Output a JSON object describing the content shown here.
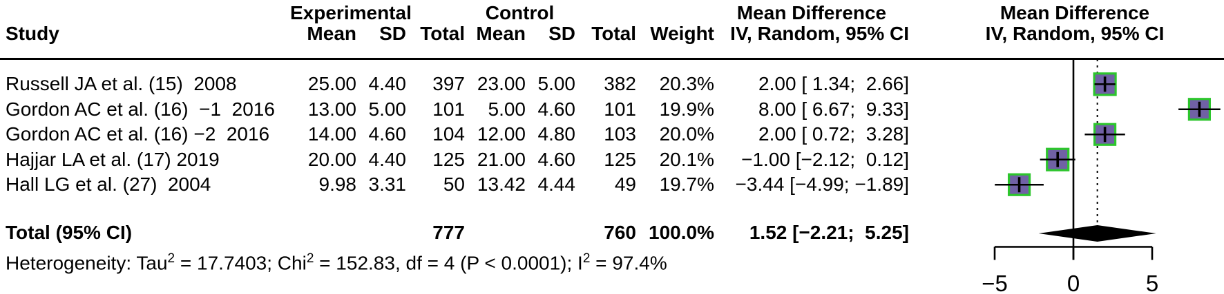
{
  "headers": {
    "study": "Study",
    "experimental": "Experimental",
    "control": "Control",
    "mean": "Mean",
    "sd": "SD",
    "total": "Total",
    "weight": "Weight",
    "mean_difference": "Mean Difference",
    "iv_random": "IV, Random, 95% CI"
  },
  "table": {
    "rows": [
      {
        "study": "Russell JA et al. (15)  2008",
        "exp_mean": "25.00",
        "exp_sd": "4.40",
        "exp_total": "397",
        "ctrl_mean": "23.00",
        "ctrl_sd": "5.00",
        "ctrl_total": "382",
        "weight": "20.3%",
        "md_ci": "2.00 [ 1.34;  2.66]"
      },
      {
        "study": "Gordon AC et al. (16)  −1  2016",
        "exp_mean": "13.00",
        "exp_sd": "5.00",
        "exp_total": "101",
        "ctrl_mean": "5.00",
        "ctrl_sd": "4.60",
        "ctrl_total": "101",
        "weight": "19.9%",
        "md_ci": "8.00 [ 6.67;  9.33]"
      },
      {
        "study": "Gordon AC et al. (16) −2  2016",
        "exp_mean": "14.00",
        "exp_sd": "4.60",
        "exp_total": "104",
        "ctrl_mean": "12.00",
        "ctrl_sd": "4.80",
        "ctrl_total": "103",
        "weight": "20.0%",
        "md_ci": "2.00 [ 0.72;  3.28]"
      },
      {
        "study": "Hajjar LA et al. (17) 2019",
        "exp_mean": "20.00",
        "exp_sd": "4.40",
        "exp_total": "125",
        "ctrl_mean": "21.00",
        "ctrl_sd": "4.60",
        "ctrl_total": "125",
        "weight": "20.1%",
        "md_ci": "−1.00 [−2.12;  0.12]"
      },
      {
        "study": "Hall LG et al. (27)  2004",
        "exp_mean": "9.98",
        "exp_sd": "3.31",
        "exp_total": "50",
        "ctrl_mean": "13.42",
        "ctrl_sd": "4.44",
        "ctrl_total": "49",
        "weight": "19.7%",
        "md_ci": "−3.44 [−4.99; −1.89]"
      }
    ],
    "total_row": {
      "study": "Total (95% CI)",
      "exp_mean": "",
      "exp_sd": "",
      "exp_total": "777",
      "ctrl_mean": "",
      "ctrl_sd": "",
      "ctrl_total": "760",
      "weight": "100.0%",
      "md_ci": "1.52 [−2.21;  5.25]"
    },
    "heterogeneity_parts": [
      {
        "t": "Heterogeneity: Tau"
      },
      {
        "sup": "2"
      },
      {
        "t": " = 17.7403; Chi"
      },
      {
        "sup": "2"
      },
      {
        "t": " = 152.83, df = 4 (P < 0.0001); I"
      },
      {
        "sup": "2"
      },
      {
        "t": " = 97.4%"
      }
    ]
  },
  "chart_data": {
    "type": "scatter",
    "subtype": "forest-plot",
    "title": "Mean Difference, IV, Random, 95% CI",
    "xlabel": "Mean Difference",
    "x_ticks": [
      -5,
      0,
      5
    ],
    "x_tick_labels": [
      "−5",
      "0",
      "5"
    ],
    "xlim": [
      -5.6,
      9.6
    ],
    "zero_line_x": 0,
    "overall_dotted_line_x": 1.52,
    "studies": [
      {
        "label": "Russell JA et al. (15) 2008",
        "md": 2.0,
        "ci_low": 1.34,
        "ci_high": 2.66,
        "weight_pct": 20.3
      },
      {
        "label": "Gordon AC et al. (16) −1 2016",
        "md": 8.0,
        "ci_low": 6.67,
        "ci_high": 9.33,
        "weight_pct": 19.9
      },
      {
        "label": "Gordon AC et al. (16) −2 2016",
        "md": 2.0,
        "ci_low": 0.72,
        "ci_high": 3.28,
        "weight_pct": 20.0
      },
      {
        "label": "Hajjar LA et al. (17) 2019",
        "md": -1.0,
        "ci_low": -2.12,
        "ci_high": 0.12,
        "weight_pct": 20.1
      },
      {
        "label": "Hall LG et al. (27) 2004",
        "md": -3.44,
        "ci_low": -4.99,
        "ci_high": -1.89,
        "weight_pct": 19.7
      }
    ],
    "total": {
      "md": 1.52,
      "ci_low": -2.21,
      "ci_high": 5.25,
      "weight_pct": 100.0
    },
    "legend": "none",
    "grid": "off",
    "colors": {
      "square_fill": "#7061A5",
      "square_border": "#2DC52D",
      "diamond_fill": "#000000",
      "line": "#000000"
    }
  }
}
